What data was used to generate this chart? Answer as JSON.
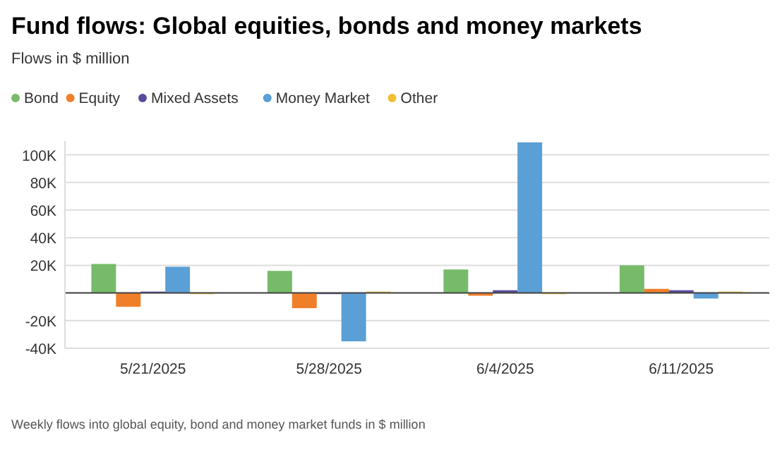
{
  "chart_data": {
    "type": "bar",
    "title": "Fund flows: Global equities, bonds and money markets",
    "subtitle": "Flows in $ million",
    "categories": [
      "5/21/2025",
      "5/28/2025",
      "6/4/2025",
      "6/11/2025"
    ],
    "series": [
      {
        "name": "Bond",
        "color": "#77bb6a",
        "values": [
          21000,
          16000,
          17000,
          20000
        ]
      },
      {
        "name": "Equity",
        "color": "#f07f2a",
        "values": [
          -10000,
          -11000,
          -2000,
          3000
        ]
      },
      {
        "name": "Mixed Assets",
        "color": "#5b4a9b",
        "values": [
          1000,
          0,
          2000,
          2000
        ]
      },
      {
        "name": "Money Market",
        "color": "#5a9fd6",
        "values": [
          19000,
          -35000,
          109000,
          -4000
        ]
      },
      {
        "name": "Other",
        "color": "#f0c030",
        "values": [
          0,
          1000,
          0,
          1000
        ]
      }
    ],
    "ylim": [
      -40000,
      110000
    ],
    "yticks": [
      {
        "value": -40000,
        "label": "-40K"
      },
      {
        "value": -20000,
        "label": "-20K"
      },
      {
        "value": 0,
        "label": null
      },
      {
        "value": 20000,
        "label": "20K"
      },
      {
        "value": 40000,
        "label": "40K"
      },
      {
        "value": 60000,
        "label": "60K"
      },
      {
        "value": 80000,
        "label": "80K"
      },
      {
        "value": 100000,
        "label": "100K"
      }
    ],
    "grid": "y",
    "legend": "top left",
    "annotations": [
      "Weekly flows into global equity, bond and money market funds in $ million"
    ]
  }
}
